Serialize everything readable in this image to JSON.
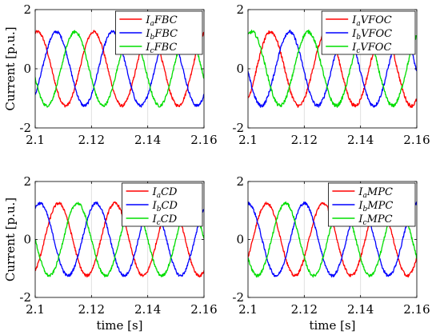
{
  "chart_data": [
    {
      "type": "line",
      "x_start": 2.1,
      "x_end": 2.16,
      "xlim": [
        2.1,
        2.16
      ],
      "ylim": [
        -2,
        2
      ],
      "xticks": [
        "2.1",
        "2.12",
        "2.14",
        "2.16"
      ],
      "yticks": [
        "2",
        "0",
        "-2"
      ],
      "ylabel": "Current [p.u.]",
      "xlabel": "",
      "grid": true,
      "legend_position": "top-right",
      "freq_hz": 50,
      "amplitude": 1.25,
      "noise": 0.05,
      "series": [
        {
          "name": "I_aFBC",
          "sub": "a",
          "label": "FBC",
          "color": "#ff0000",
          "phase_deg": 75
        },
        {
          "name": "I_bFBC",
          "sub": "b",
          "label": "FBC",
          "color": "#0000ff",
          "phase_deg": -45
        },
        {
          "name": "I_cFBC",
          "sub": "c",
          "label": "FBC",
          "color": "#00dd00",
          "phase_deg": 195
        }
      ]
    },
    {
      "type": "line",
      "x_start": 2.1,
      "x_end": 2.16,
      "xlim": [
        2.1,
        2.16
      ],
      "ylim": [
        -2,
        2
      ],
      "xticks": [
        "2.1",
        "2.12",
        "2.14",
        "2.16"
      ],
      "yticks": [
        "2",
        "0",
        "-2"
      ],
      "ylabel": "",
      "xlabel": "",
      "grid": true,
      "legend_position": "top-right",
      "freq_hz": 50,
      "amplitude": 1.25,
      "noise": 0.06,
      "series": [
        {
          "name": "I_aVFOC",
          "sub": "a",
          "label": "VFOC",
          "color": "#ff0000",
          "phase_deg": -55
        },
        {
          "name": "I_bVFOC",
          "sub": "b",
          "label": "VFOC",
          "color": "#0000ff",
          "phase_deg": -175
        },
        {
          "name": "I_cVFOC",
          "sub": "c",
          "label": "VFOC",
          "color": "#00dd00",
          "phase_deg": 65
        }
      ]
    },
    {
      "type": "line",
      "x_start": 2.1,
      "x_end": 2.16,
      "xlim": [
        2.1,
        2.16
      ],
      "ylim": [
        -2,
        2
      ],
      "xticks": [
        "2.1",
        "2.12",
        "2.14",
        "2.16"
      ],
      "yticks": [
        "2",
        "0",
        "-2"
      ],
      "ylabel": "Current [p.u.]",
      "xlabel": "time [s]",
      "grid": true,
      "legend_position": "top-right",
      "freq_hz": 50,
      "amplitude": 1.25,
      "noise": 0.05,
      "series": [
        {
          "name": "I_aCD",
          "sub": "a",
          "label": "CD",
          "color": "#ff0000",
          "phase_deg": -60
        },
        {
          "name": "I_bCD",
          "sub": "b",
          "label": "CD",
          "color": "#0000ff",
          "phase_deg": 60
        },
        {
          "name": "I_cCD",
          "sub": "c",
          "label": "CD",
          "color": "#00dd00",
          "phase_deg": 180
        }
      ]
    },
    {
      "type": "line",
      "x_start": 2.1,
      "x_end": 2.16,
      "xlim": [
        2.1,
        2.16
      ],
      "ylim": [
        -2,
        2
      ],
      "xticks": [
        "2.1",
        "2.12",
        "2.14",
        "2.16"
      ],
      "yticks": [
        "2",
        "0",
        "-2"
      ],
      "ylabel": "",
      "xlabel": "time [s]",
      "grid": true,
      "legend_position": "top-right",
      "freq_hz": 50,
      "amplitude": 1.25,
      "noise": 0.05,
      "series": [
        {
          "name": "I_aMPC",
          "sub": "a",
          "label": "MPC",
          "color": "#ff0000",
          "phase_deg": -30
        },
        {
          "name": "I_bMPC",
          "sub": "b",
          "label": "MPC",
          "color": "#0000ff",
          "phase_deg": 90
        },
        {
          "name": "I_cMPC",
          "sub": "c",
          "label": "MPC",
          "color": "#00dd00",
          "phase_deg": 210
        }
      ]
    }
  ]
}
